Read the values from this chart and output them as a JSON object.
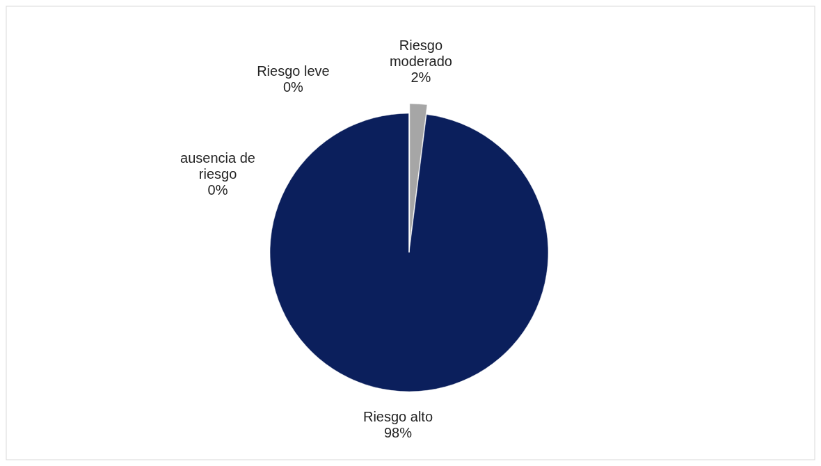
{
  "chart_data": {
    "type": "pie",
    "categories": [
      "Riesgo moderado",
      "Riesgo alto",
      "ausencia de riesgo",
      "Riesgo leve"
    ],
    "values": [
      2,
      98,
      0,
      0
    ],
    "colors": [
      "#a6a6a6",
      "#0b1f5c",
      "#4472c4",
      "#7f7f7f"
    ],
    "value_labels": [
      "2%",
      "98%",
      "0%",
      "0%"
    ]
  }
}
